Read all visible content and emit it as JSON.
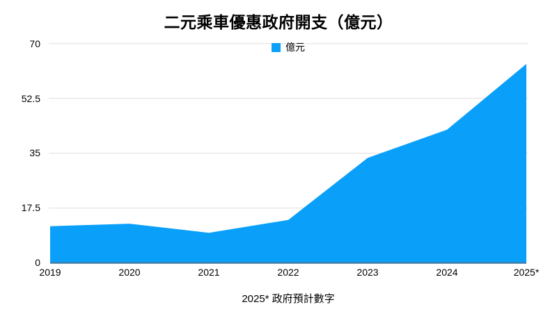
{
  "chart": {
    "title": "二元乘車優惠政府開支（億元）",
    "footnote": "2025* 政府預計數字",
    "legend": {
      "label": "億元"
    }
  },
  "chart_data": {
    "type": "area",
    "title": "二元乘車優惠政府開支（億元）",
    "categories": [
      "2019",
      "2020",
      "2021",
      "2022",
      "2023",
      "2024",
      "2025*"
    ],
    "series": [
      {
        "name": "億元",
        "values": [
          11.7,
          12.5,
          9.6,
          13.7,
          33.5,
          42.5,
          63.5
        ]
      }
    ],
    "xlabel": "",
    "ylabel": "",
    "ylim": [
      0,
      70
    ],
    "yticks": [
      0,
      17.5,
      35,
      52.5,
      70
    ],
    "ytick_labels": [
      "0",
      "17.5",
      "35",
      "52.5",
      "70"
    ],
    "grid": true,
    "legend_position": "top-center",
    "annotation": "2025* 政府預計數字",
    "colors": {
      "area_fill": "#0AA0FA",
      "axis_line": "#3E7FA8",
      "gridline": "#DDDDDD",
      "text": "#000000"
    }
  }
}
